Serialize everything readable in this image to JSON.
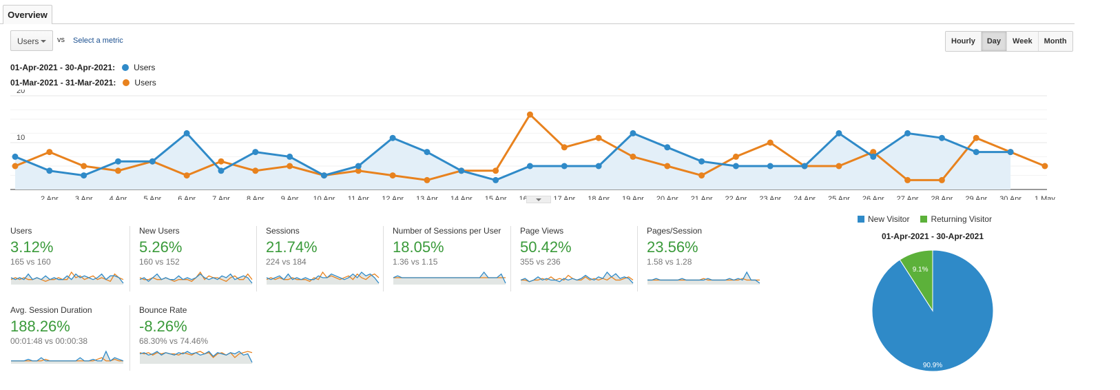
{
  "tabs": [
    {
      "label": "Overview"
    }
  ],
  "metric_select": {
    "value": "Users",
    "vs": "vs",
    "select_label": "Select a metric"
  },
  "granularity": {
    "options": [
      "Hourly",
      "Day",
      "Week",
      "Month"
    ],
    "selected": "Day"
  },
  "legend": [
    {
      "range": "01-Apr-2021 - 30-Apr-2021:",
      "metric": "Users",
      "color": "#2f8ac8"
    },
    {
      "range": "01-Mar-2021 - 31-Mar-2021:",
      "metric": "Users",
      "color": "#e8821e"
    }
  ],
  "chart_data": {
    "type": "line",
    "title": "",
    "yticks": [
      "10",
      "20"
    ],
    "ylim": [
      0,
      20
    ],
    "x_labels": [
      "...",
      "2 Apr",
      "3 Apr",
      "4 Apr",
      "5 Apr",
      "6 Apr",
      "7 Apr",
      "8 Apr",
      "9 Apr",
      "10 Apr",
      "11 Apr",
      "12 Apr",
      "13 Apr",
      "14 Apr",
      "15 Apr",
      "16 Apr",
      "17 Apr",
      "18 Apr",
      "19 Apr",
      "20 Apr",
      "21 Apr",
      "22 Apr",
      "23 Apr",
      "24 Apr",
      "25 Apr",
      "26 Apr",
      "27 Apr",
      "28 Apr",
      "29 Apr",
      "30 Apr",
      "1 May"
    ],
    "series": [
      {
        "name": "Users (01-Apr-2021 - 30-Apr-2021)",
        "color": "#2f8ac8",
        "values": [
          7,
          4,
          3,
          6,
          6,
          12,
          4,
          8,
          7,
          3,
          5,
          11,
          8,
          4,
          2,
          5,
          5,
          5,
          12,
          9,
          6,
          5,
          5,
          5,
          12,
          7,
          12,
          11,
          8,
          8
        ]
      },
      {
        "name": "Users (01-Mar-2021 - 31-Mar-2021)",
        "color": "#e8821e",
        "values": [
          5,
          8,
          5,
          4,
          6,
          3,
          6,
          4,
          5,
          3,
          4,
          3,
          2,
          4,
          4,
          16,
          9,
          11,
          7,
          5,
          3,
          7,
          10,
          5,
          5,
          8,
          2,
          2,
          11,
          8,
          5
        ]
      }
    ]
  },
  "metrics": [
    {
      "name": "Users",
      "change": "3.12%",
      "compare": "165 vs 160",
      "a": [
        3,
        2,
        3,
        2,
        5,
        2,
        3,
        2,
        4,
        2,
        3,
        2,
        2,
        4,
        2,
        5,
        3,
        4,
        3,
        2,
        3,
        5,
        2,
        4,
        4,
        3,
        0
      ],
      "b": [
        2,
        3,
        2,
        3,
        2,
        2,
        3,
        2,
        1,
        2,
        2,
        3,
        2,
        2,
        6,
        3,
        4,
        2,
        3,
        4,
        2,
        3,
        2,
        1,
        5,
        3,
        2
      ]
    },
    {
      "name": "New Users",
      "change": "5.26%",
      "compare": "160 vs 152",
      "a": [
        2,
        3,
        1,
        3,
        5,
        2,
        3,
        2,
        2,
        4,
        2,
        3,
        2,
        3,
        5,
        3,
        2,
        3,
        2,
        4,
        3,
        5,
        2,
        3,
        4,
        3,
        0
      ],
      "b": [
        3,
        2,
        2,
        3,
        2,
        2,
        3,
        2,
        1,
        2,
        2,
        2,
        1,
        3,
        6,
        2,
        4,
        3,
        3,
        2,
        1,
        3,
        4,
        2,
        2,
        5,
        2
      ]
    },
    {
      "name": "Sessions",
      "change": "21.74%",
      "compare": "224 vs 184",
      "a": [
        3,
        2,
        3,
        4,
        2,
        5,
        2,
        3,
        2,
        3,
        2,
        2,
        4,
        3,
        3,
        5,
        4,
        3,
        2,
        3,
        5,
        3,
        6,
        4,
        5,
        3,
        0
      ],
      "b": [
        2,
        3,
        2,
        3,
        2,
        2,
        3,
        2,
        2,
        2,
        1,
        3,
        2,
        6,
        3,
        4,
        3,
        2,
        3,
        4,
        2,
        5,
        3,
        2,
        4,
        5,
        3
      ]
    },
    {
      "name": "Number of Sessions per User",
      "change": "18.05%",
      "compare": "1.36 vs 1.15",
      "a": [
        3,
        4,
        3,
        3,
        3,
        3,
        3,
        3,
        3,
        3,
        3,
        3,
        3,
        3,
        3,
        3,
        3,
        3,
        3,
        3,
        3,
        6,
        3,
        3,
        3,
        5,
        0
      ],
      "b": [
        3,
        3,
        3,
        3,
        3,
        3,
        3,
        3,
        3,
        3,
        3,
        3,
        3,
        3,
        3,
        3,
        3,
        3,
        3,
        3,
        3,
        3,
        3,
        3,
        3,
        3,
        3
      ]
    },
    {
      "name": "Page Views",
      "change": "50.42%",
      "compare": "355 vs 236",
      "a": [
        2,
        3,
        1,
        2,
        4,
        2,
        3,
        2,
        2,
        1,
        3,
        2,
        3,
        2,
        3,
        5,
        3,
        2,
        4,
        3,
        7,
        4,
        6,
        3,
        4,
        3,
        0
      ],
      "b": [
        2,
        2,
        1,
        2,
        2,
        3,
        2,
        4,
        2,
        3,
        2,
        5,
        3,
        2,
        2,
        4,
        2,
        3,
        2,
        3,
        2,
        4,
        2,
        2,
        3,
        4,
        2
      ]
    },
    {
      "name": "Pages/Session",
      "change": "23.56%",
      "compare": "1.58 vs 1.28",
      "a": [
        2,
        2,
        3,
        2,
        2,
        2,
        2,
        2,
        3,
        2,
        2,
        2,
        2,
        2,
        3,
        2,
        2,
        2,
        2,
        3,
        2,
        3,
        2,
        7,
        2,
        2,
        0
      ],
      "b": [
        2,
        2,
        2,
        2,
        2,
        2,
        2,
        2,
        2,
        2,
        2,
        2,
        2,
        3,
        2,
        2,
        2,
        2,
        2,
        2,
        2,
        2,
        3,
        2,
        2,
        2,
        2
      ]
    },
    {
      "name": "Avg. Session Duration",
      "change": "188.26%",
      "compare": "00:01:48 vs 00:00:38",
      "a": [
        1,
        1,
        1,
        1,
        2,
        1,
        1,
        3,
        1,
        1,
        1,
        1,
        1,
        1,
        1,
        1,
        3,
        1,
        1,
        2,
        1,
        1,
        7,
        1,
        3,
        2,
        1
      ],
      "b": [
        1,
        1,
        1,
        1,
        1,
        1,
        1,
        1,
        2,
        1,
        1,
        1,
        1,
        1,
        1,
        1,
        1,
        1,
        1,
        1,
        2,
        3,
        1,
        1,
        2,
        1,
        1
      ]
    },
    {
      "name": "Bounce Rate",
      "change": "-8.26%",
      "compare": "68.30% vs 74.46%",
      "a": [
        7,
        8,
        6,
        7,
        9,
        6,
        8,
        7,
        6,
        8,
        7,
        9,
        7,
        8,
        6,
        7,
        9,
        5,
        8,
        7,
        6,
        8,
        7,
        9,
        6,
        7,
        0
      ],
      "b": [
        8,
        7,
        8,
        6,
        8,
        7,
        8,
        7,
        7,
        6,
        8,
        7,
        6,
        8,
        9,
        7,
        8,
        4,
        7,
        8,
        6,
        8,
        4,
        7,
        8,
        9,
        8
      ]
    }
  ],
  "pie": {
    "legend": [
      {
        "label": "New Visitor",
        "color": "#2f8ac8"
      },
      {
        "label": "Returning Visitor",
        "color": "#5cb13a"
      }
    ],
    "title": "01-Apr-2021 - 30-Apr-2021",
    "chart_data": {
      "type": "pie",
      "labels": [
        "New Visitor",
        "Returning Visitor"
      ],
      "values": [
        90.9,
        9.1
      ],
      "data_labels": [
        "90.9%",
        "9.1%"
      ]
    }
  }
}
